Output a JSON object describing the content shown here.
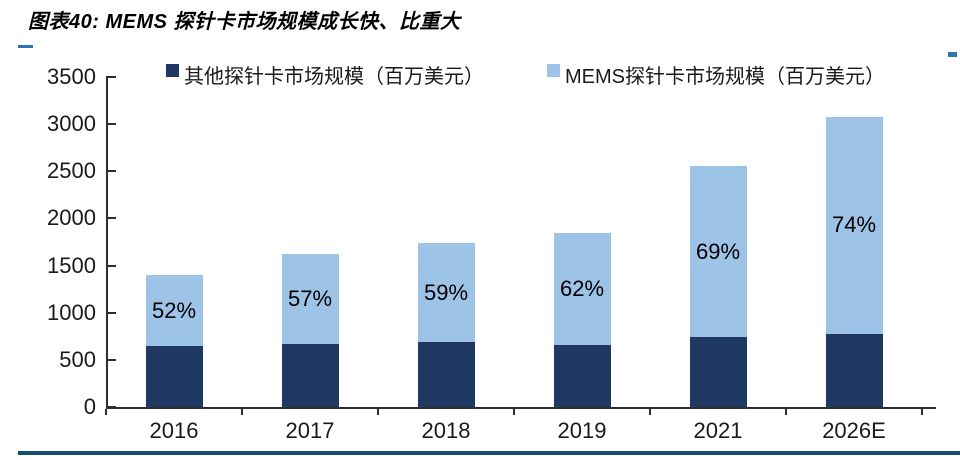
{
  "page": {
    "title": "图表40: MEMS 探针卡市场规模成长快、比重大"
  },
  "colors": {
    "bar_other": "#1f3864",
    "bar_mems": "#9dc3e6",
    "axis": "#2f2f2f",
    "accent_dash": "#2e74b5",
    "bottom_rule": "#134f72"
  },
  "chart_data": {
    "type": "bar",
    "stacked": true,
    "title": "图表40: MEMS 探针卡市场规模成长快、比重大",
    "categories": [
      "2016",
      "2017",
      "2018",
      "2019",
      "2021",
      "2026E"
    ],
    "series": [
      {
        "name": "其他探针卡市场规模（百万美元）",
        "color": "#1f3864",
        "values": [
          650,
          665,
          685,
          660,
          740,
          775
        ]
      },
      {
        "name": "MEMS探针卡市场规模（百万美元）",
        "color": "#9dc3e6",
        "values": [
          755,
          960,
          1050,
          1190,
          1820,
          2300
        ]
      }
    ],
    "bar_labels": [
      "52%",
      "57%",
      "59%",
      "62%",
      "69%",
      "74%"
    ],
    "ylim": [
      0,
      3500
    ],
    "yticks": [
      0,
      500,
      1000,
      1500,
      2000,
      2500,
      3000,
      3500
    ],
    "grid": false,
    "legend_position": "top"
  }
}
